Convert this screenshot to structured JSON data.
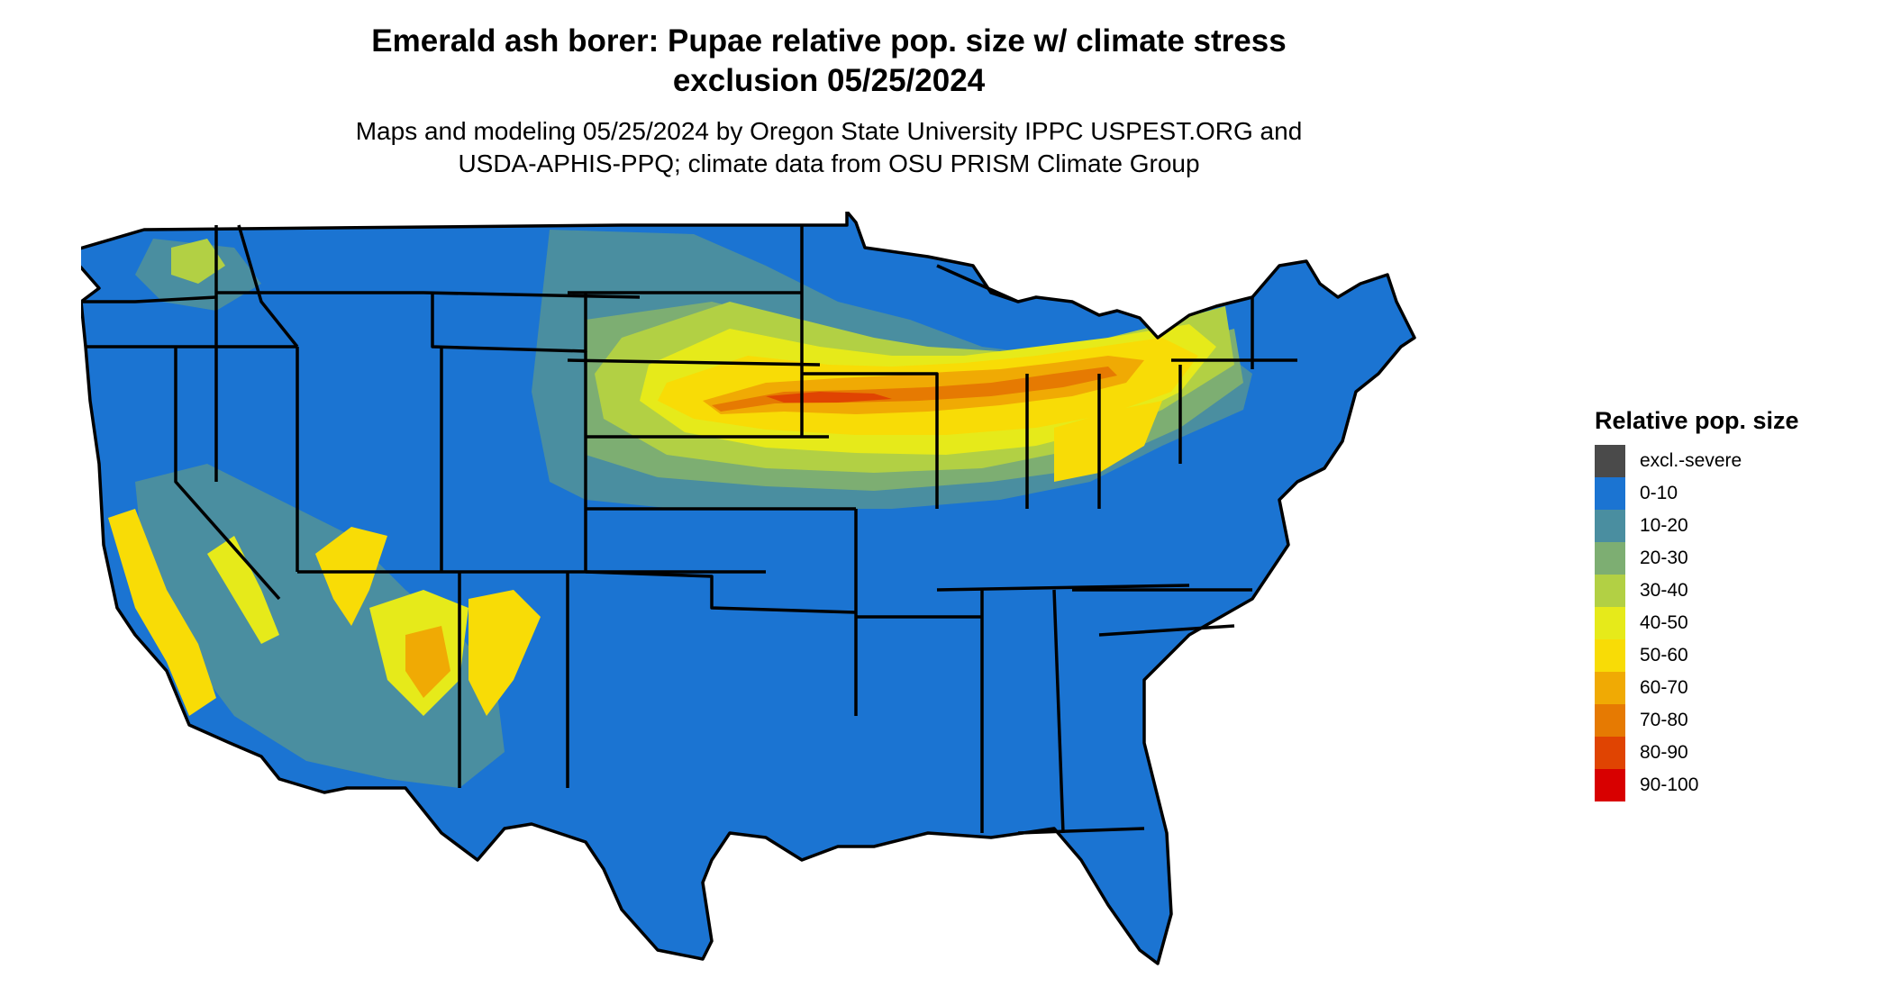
{
  "title_line1": "Emerald ash borer: Pupae relative pop. size w/ climate stress",
  "title_line2": "exclusion 05/25/2024",
  "subtitle_line1": "Maps and modeling 05/25/2024 by Oregon State University IPPC USPEST.ORG and",
  "subtitle_line2": "USDA-APHIS-PPQ; climate data from OSU PRISM Climate Group",
  "legend": {
    "title": "Relative pop. size",
    "items": [
      {
        "label": "excl.-severe",
        "color": "#4a4a4a"
      },
      {
        "label": "0-10",
        "color": "#1b74d2"
      },
      {
        "label": "10-20",
        "color": "#4a8ea0"
      },
      {
        "label": "20-30",
        "color": "#7dae72"
      },
      {
        "label": "30-40",
        "color": "#b2d044"
      },
      {
        "label": "40-50",
        "color": "#e6ea1a"
      },
      {
        "label": "50-60",
        "color": "#f8dc06"
      },
      {
        "label": "60-70",
        "color": "#f0aa04"
      },
      {
        "label": "70-80",
        "color": "#e67a02"
      },
      {
        "label": "80-90",
        "color": "#e04402"
      },
      {
        "label": "90-100",
        "color": "#d80000"
      }
    ]
  },
  "map": {
    "base_color": "#1b74d2",
    "border_color": "#000000"
  }
}
